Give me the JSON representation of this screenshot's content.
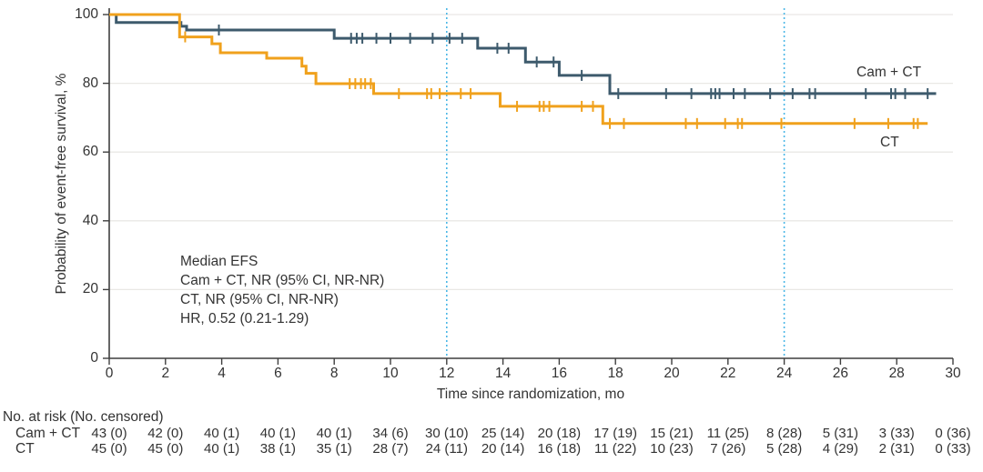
{
  "colors": {
    "camct": "#3d5a6c",
    "ct": "#f0a11c",
    "refline": "#4bb7e6",
    "grid": "#e9e8e5",
    "axis": "#3f3f3f",
    "text": "#333333"
  },
  "axes": {
    "y_title": "Probability of event-free survival, %",
    "x_title": "Time since randomization, mo"
  },
  "annotation": {
    "lines": [
      "Median EFS",
      "Cam + CT, NR (95% CI, NR-NR)",
      "CT, NR (95% CI, NR-NR)",
      "HR, 0.52 (0.21-1.29)"
    ]
  },
  "series_labels": {
    "camct": "Cam + CT",
    "ct": "CT"
  },
  "chart_data": {
    "type": "line",
    "subtype": "kaplan-meier-step",
    "title": "",
    "xlabel": "Time since randomization, mo",
    "ylabel": "Probability of event-free survival, %",
    "xlim": [
      0,
      30
    ],
    "ylim": [
      0,
      100
    ],
    "x_ticks": [
      0,
      2,
      4,
      6,
      8,
      10,
      12,
      14,
      16,
      18,
      20,
      22,
      24,
      26,
      28,
      30
    ],
    "y_ticks": [
      0,
      20,
      40,
      60,
      80,
      100
    ],
    "grid": "horizontal-light",
    "reference_lines_x": [
      12,
      24
    ],
    "legend_position": "inline-right",
    "series": [
      {
        "name": "Cam + CT",
        "color_key": "camct",
        "steps": [
          [
            0,
            100
          ],
          [
            0.25,
            97.7
          ],
          [
            2.55,
            96.6
          ],
          [
            2.75,
            95.5
          ],
          [
            8.0,
            93.1
          ],
          [
            13.1,
            90.2
          ],
          [
            14.8,
            86.2
          ],
          [
            16.0,
            82.3
          ],
          [
            17.8,
            77.0
          ]
        ],
        "end_t": 29.4,
        "censor_t": [
          3.9,
          8.6,
          8.8,
          9.0,
          9.5,
          10.0,
          10.7,
          11.5,
          12.1,
          12.55,
          13.8,
          14.2,
          15.2,
          15.8,
          16.8,
          18.1,
          19.8,
          20.7,
          21.4,
          21.55,
          21.7,
          22.2,
          22.6,
          23.5,
          24.3,
          24.9,
          25.1,
          26.9,
          27.8,
          27.95,
          28.3,
          29.1
        ]
      },
      {
        "name": "CT",
        "color_key": "ct",
        "steps": [
          [
            0,
            100
          ],
          [
            2.5,
            93.5
          ],
          [
            3.65,
            91.5
          ],
          [
            3.95,
            88.9
          ],
          [
            5.6,
            87.3
          ],
          [
            6.85,
            85.0
          ],
          [
            7.0,
            82.9
          ],
          [
            7.35,
            79.9
          ],
          [
            9.4,
            77.0
          ],
          [
            13.9,
            73.3
          ],
          [
            17.55,
            68.3
          ]
        ],
        "end_t": 29.1,
        "censor_t": [
          2.7,
          8.55,
          8.75,
          8.95,
          9.1,
          9.3,
          10.3,
          11.3,
          11.45,
          11.75,
          12.5,
          12.85,
          14.5,
          15.3,
          15.45,
          15.65,
          16.8,
          17.2,
          17.8,
          18.3,
          20.5,
          20.9,
          21.9,
          22.35,
          22.5,
          23.9,
          26.5,
          27.7,
          28.6,
          28.75
        ]
      }
    ]
  },
  "risk_table": {
    "header": "No. at risk (No. censored)",
    "times": [
      0,
      2,
      4,
      6,
      8,
      10,
      12,
      14,
      16,
      18,
      20,
      22,
      24,
      26,
      28,
      30
    ],
    "rows": [
      {
        "label": "Cam + CT",
        "values": [
          "43 (0)",
          "42 (0)",
          "40 (1)",
          "40 (1)",
          "40 (1)",
          "34 (6)",
          "30 (10)",
          "25 (14)",
          "20 (18)",
          "17 (19)",
          "15 (21)",
          "11 (25)",
          "8 (28)",
          "5 (31)",
          "3 (33)",
          "0 (36)"
        ]
      },
      {
        "label": "CT",
        "values": [
          "45 (0)",
          "45 (0)",
          "40 (1)",
          "38 (1)",
          "35 (1)",
          "28 (7)",
          "24 (11)",
          "20 (14)",
          "16 (18)",
          "11 (22)",
          "10 (23)",
          "7 (26)",
          "5 (28)",
          "4 (29)",
          "2 (31)",
          "0 (33)"
        ]
      }
    ]
  }
}
